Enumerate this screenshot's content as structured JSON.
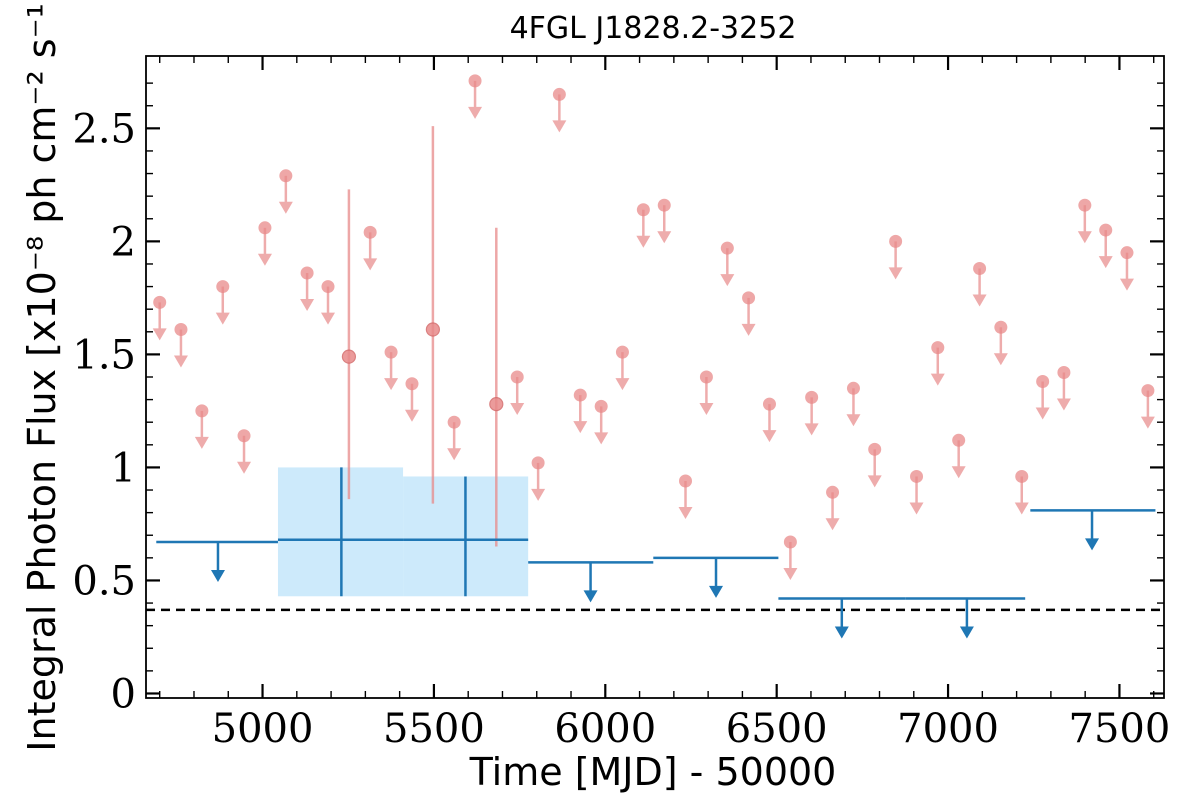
{
  "chart_data": {
    "type": "scatter",
    "title": "4FGL J1828.2-3252",
    "xlabel": "Time [MJD] - 50000",
    "ylabel": "Integral Photon Flux [x10⁻⁸ ph cm⁻² s⁻¹]",
    "xlim": [
      4660,
      7630
    ],
    "ylim": [
      -0.02,
      2.82
    ],
    "x_ticks": [
      5000,
      5500,
      6000,
      6500,
      7000,
      7500
    ],
    "x_tick_labels": [
      "5000",
      "5500",
      "6000",
      "6500",
      "7000",
      "7500"
    ],
    "y_ticks": [
      0,
      0.5,
      1,
      1.5,
      2,
      2.5
    ],
    "y_tick_labels": [
      "0",
      "0.5",
      "1",
      "1.5",
      "2",
      "2.5"
    ],
    "grid": false,
    "reference_line": {
      "y": 0.37,
      "style": "dashed",
      "color": "#000000"
    },
    "colors": {
      "short_bins": "#e88a8a",
      "long_bins": "#1f77b4",
      "long_bins_band": "#cdeafb"
    },
    "series": [
      {
        "kind": "upper_limits",
        "color": "#e88a8a",
        "points": [
          {
            "x": 4700,
            "y": 1.73
          },
          {
            "x": 4762,
            "y": 1.61
          },
          {
            "x": 4823,
            "y": 1.25
          },
          {
            "x": 4884,
            "y": 1.8
          },
          {
            "x": 4946,
            "y": 1.14
          },
          {
            "x": 5007,
            "y": 2.06
          },
          {
            "x": 5068,
            "y": 2.29
          },
          {
            "x": 5130,
            "y": 1.86
          },
          {
            "x": 5191,
            "y": 1.8
          },
          {
            "x": 5314,
            "y": 2.04
          },
          {
            "x": 5375,
            "y": 1.51
          },
          {
            "x": 5436,
            "y": 1.37
          },
          {
            "x": 5559,
            "y": 1.2
          },
          {
            "x": 5620,
            "y": 2.71
          },
          {
            "x": 5743,
            "y": 1.4
          },
          {
            "x": 5804,
            "y": 1.02
          },
          {
            "x": 5866,
            "y": 2.65
          },
          {
            "x": 5927,
            "y": 1.32
          },
          {
            "x": 5988,
            "y": 1.27
          },
          {
            "x": 6050,
            "y": 1.51
          },
          {
            "x": 6111,
            "y": 2.14
          },
          {
            "x": 6172,
            "y": 2.16
          },
          {
            "x": 6234,
            "y": 0.94
          },
          {
            "x": 6295,
            "y": 1.4
          },
          {
            "x": 6356,
            "y": 1.97
          },
          {
            "x": 6418,
            "y": 1.75
          },
          {
            "x": 6479,
            "y": 1.28
          },
          {
            "x": 6540,
            "y": 0.67
          },
          {
            "x": 6602,
            "y": 1.31
          },
          {
            "x": 6663,
            "y": 0.89
          },
          {
            "x": 6724,
            "y": 1.35
          },
          {
            "x": 6786,
            "y": 1.08
          },
          {
            "x": 6847,
            "y": 2.0
          },
          {
            "x": 6908,
            "y": 0.96
          },
          {
            "x": 6970,
            "y": 1.53
          },
          {
            "x": 7031,
            "y": 1.12
          },
          {
            "x": 7092,
            "y": 1.88
          },
          {
            "x": 7154,
            "y": 1.62
          },
          {
            "x": 7215,
            "y": 0.96
          },
          {
            "x": 7276,
            "y": 1.38
          },
          {
            "x": 7338,
            "y": 1.42
          },
          {
            "x": 7399,
            "y": 2.16
          },
          {
            "x": 7460,
            "y": 2.05
          },
          {
            "x": 7522,
            "y": 1.95
          },
          {
            "x": 7583,
            "y": 1.34
          }
        ]
      },
      {
        "kind": "detections",
        "color": "#e88a8a",
        "points": [
          {
            "x": 5252,
            "y": 1.49,
            "ylo": 0.86,
            "yhi": 2.23
          },
          {
            "x": 5497,
            "y": 1.61,
            "ylo": 0.84,
            "yhi": 2.51
          },
          {
            "x": 5682,
            "y": 1.28,
            "ylo": 0.65,
            "yhi": 2.06
          }
        ]
      },
      {
        "kind": "binned_upper_limits",
        "color": "#1f77b4",
        "bins": [
          {
            "x0": 4690,
            "x1": 5045,
            "xc": 4870,
            "y": 0.67
          },
          {
            "x0": 5775,
            "x1": 6140,
            "xc": 5957,
            "y": 0.58
          },
          {
            "x0": 6140,
            "x1": 6505,
            "xc": 6323,
            "y": 0.6
          },
          {
            "x0": 6505,
            "x1": 6875,
            "xc": 6690,
            "y": 0.42
          },
          {
            "x0": 6875,
            "x1": 7225,
            "xc": 7055,
            "y": 0.42
          },
          {
            "x0": 7240,
            "x1": 7605,
            "xc": 7420,
            "y": 0.81
          }
        ]
      },
      {
        "kind": "binned_detections",
        "color": "#1f77b4",
        "bins": [
          {
            "x0": 5045,
            "x1": 5410,
            "xc": 5230,
            "y": 0.68,
            "ylo": 0.43,
            "yhi": 1.0
          },
          {
            "x0": 5410,
            "x1": 5775,
            "xc": 5592,
            "y": 0.68,
            "ylo": 0.43,
            "yhi": 0.96
          }
        ]
      }
    ]
  }
}
